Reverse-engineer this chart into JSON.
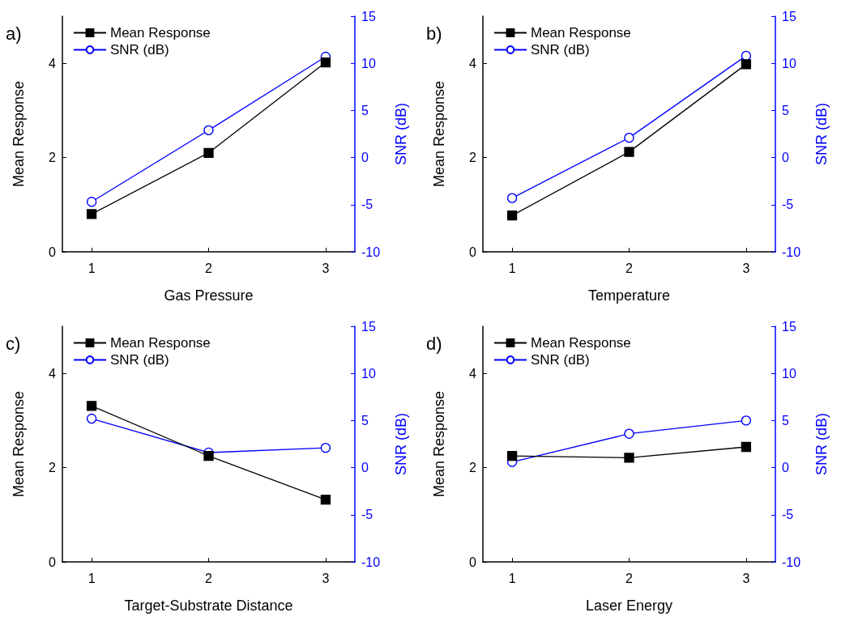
{
  "chart_data": [
    {
      "type": "line",
      "title": "a)",
      "xlabel": "Gas Pressure",
      "ylabel": "Mean Response",
      "y2label": "SNR (dB)",
      "x": [
        1,
        2,
        3
      ],
      "xlim": [
        0.75,
        3.25
      ],
      "xticks": [
        1,
        2,
        3
      ],
      "ylim": [
        0,
        5
      ],
      "yticks": [
        0,
        2,
        4
      ],
      "y2lim": [
        -10,
        15
      ],
      "y2ticks": [
        -10,
        -5,
        0,
        5,
        10,
        15
      ],
      "legend": "top left",
      "grid": false,
      "series": [
        {
          "name": "Mean Response",
          "color": "#000000",
          "marker": "square",
          "values": [
            0.8,
            2.1,
            4.02
          ]
        },
        {
          "name": "SNR (dB)",
          "color": "#0000ff",
          "marker": "circle",
          "axis": "y2",
          "values": [
            -4.7,
            2.9,
            10.7
          ]
        }
      ]
    },
    {
      "type": "line",
      "title": "b)",
      "xlabel": "Temperature",
      "ylabel": "Mean Response",
      "y2label": "SNR (dB)",
      "x": [
        1,
        2,
        3
      ],
      "xlim": [
        0.75,
        3.25
      ],
      "xticks": [
        1,
        2,
        3
      ],
      "ylim": [
        0,
        5
      ],
      "yticks": [
        0,
        2,
        4
      ],
      "y2lim": [
        -10,
        15
      ],
      "y2ticks": [
        -10,
        -5,
        0,
        5,
        10,
        15
      ],
      "legend": "top left",
      "grid": false,
      "series": [
        {
          "name": "Mean Response",
          "color": "#000000",
          "marker": "square",
          "values": [
            0.77,
            2.12,
            3.98
          ]
        },
        {
          "name": "SNR (dB)",
          "color": "#0000ff",
          "marker": "circle",
          "axis": "y2",
          "values": [
            -4.3,
            2.1,
            10.8
          ]
        }
      ]
    },
    {
      "type": "line",
      "title": "c)",
      "xlabel": "Target-Substrate Distance",
      "ylabel": "Mean Response",
      "y2label": "SNR (dB)",
      "x": [
        1,
        2,
        3
      ],
      "xlim": [
        0.75,
        3.25
      ],
      "xticks": [
        1,
        2,
        3
      ],
      "ylim": [
        0,
        5
      ],
      "yticks": [
        0,
        2,
        4
      ],
      "y2lim": [
        -10,
        15
      ],
      "y2ticks": [
        -10,
        -5,
        0,
        5,
        10,
        15
      ],
      "legend": "top left",
      "grid": false,
      "series": [
        {
          "name": "Mean Response",
          "color": "#000000",
          "marker": "square",
          "values": [
            3.31,
            2.25,
            1.32
          ]
        },
        {
          "name": "SNR (dB)",
          "color": "#0000ff",
          "marker": "circle",
          "axis": "y2",
          "values": [
            5.2,
            1.6,
            2.1
          ]
        }
      ]
    },
    {
      "type": "line",
      "title": "d)",
      "xlabel": "Laser Energy",
      "ylabel": "Mean Response",
      "y2label": "SNR (dB)",
      "x": [
        1,
        2,
        3
      ],
      "xlim": [
        0.75,
        3.25
      ],
      "xticks": [
        1,
        2,
        3
      ],
      "ylim": [
        0,
        5
      ],
      "yticks": [
        0,
        2,
        4
      ],
      "y2lim": [
        -10,
        15
      ],
      "y2ticks": [
        -10,
        -5,
        0,
        5,
        10,
        15
      ],
      "legend": "top left",
      "grid": false,
      "series": [
        {
          "name": "Mean Response",
          "color": "#000000",
          "marker": "square",
          "values": [
            2.25,
            2.21,
            2.44
          ]
        },
        {
          "name": "SNR (dB)",
          "color": "#0000ff",
          "marker": "circle",
          "axis": "y2",
          "values": [
            0.6,
            3.6,
            5.0
          ]
        }
      ]
    }
  ]
}
